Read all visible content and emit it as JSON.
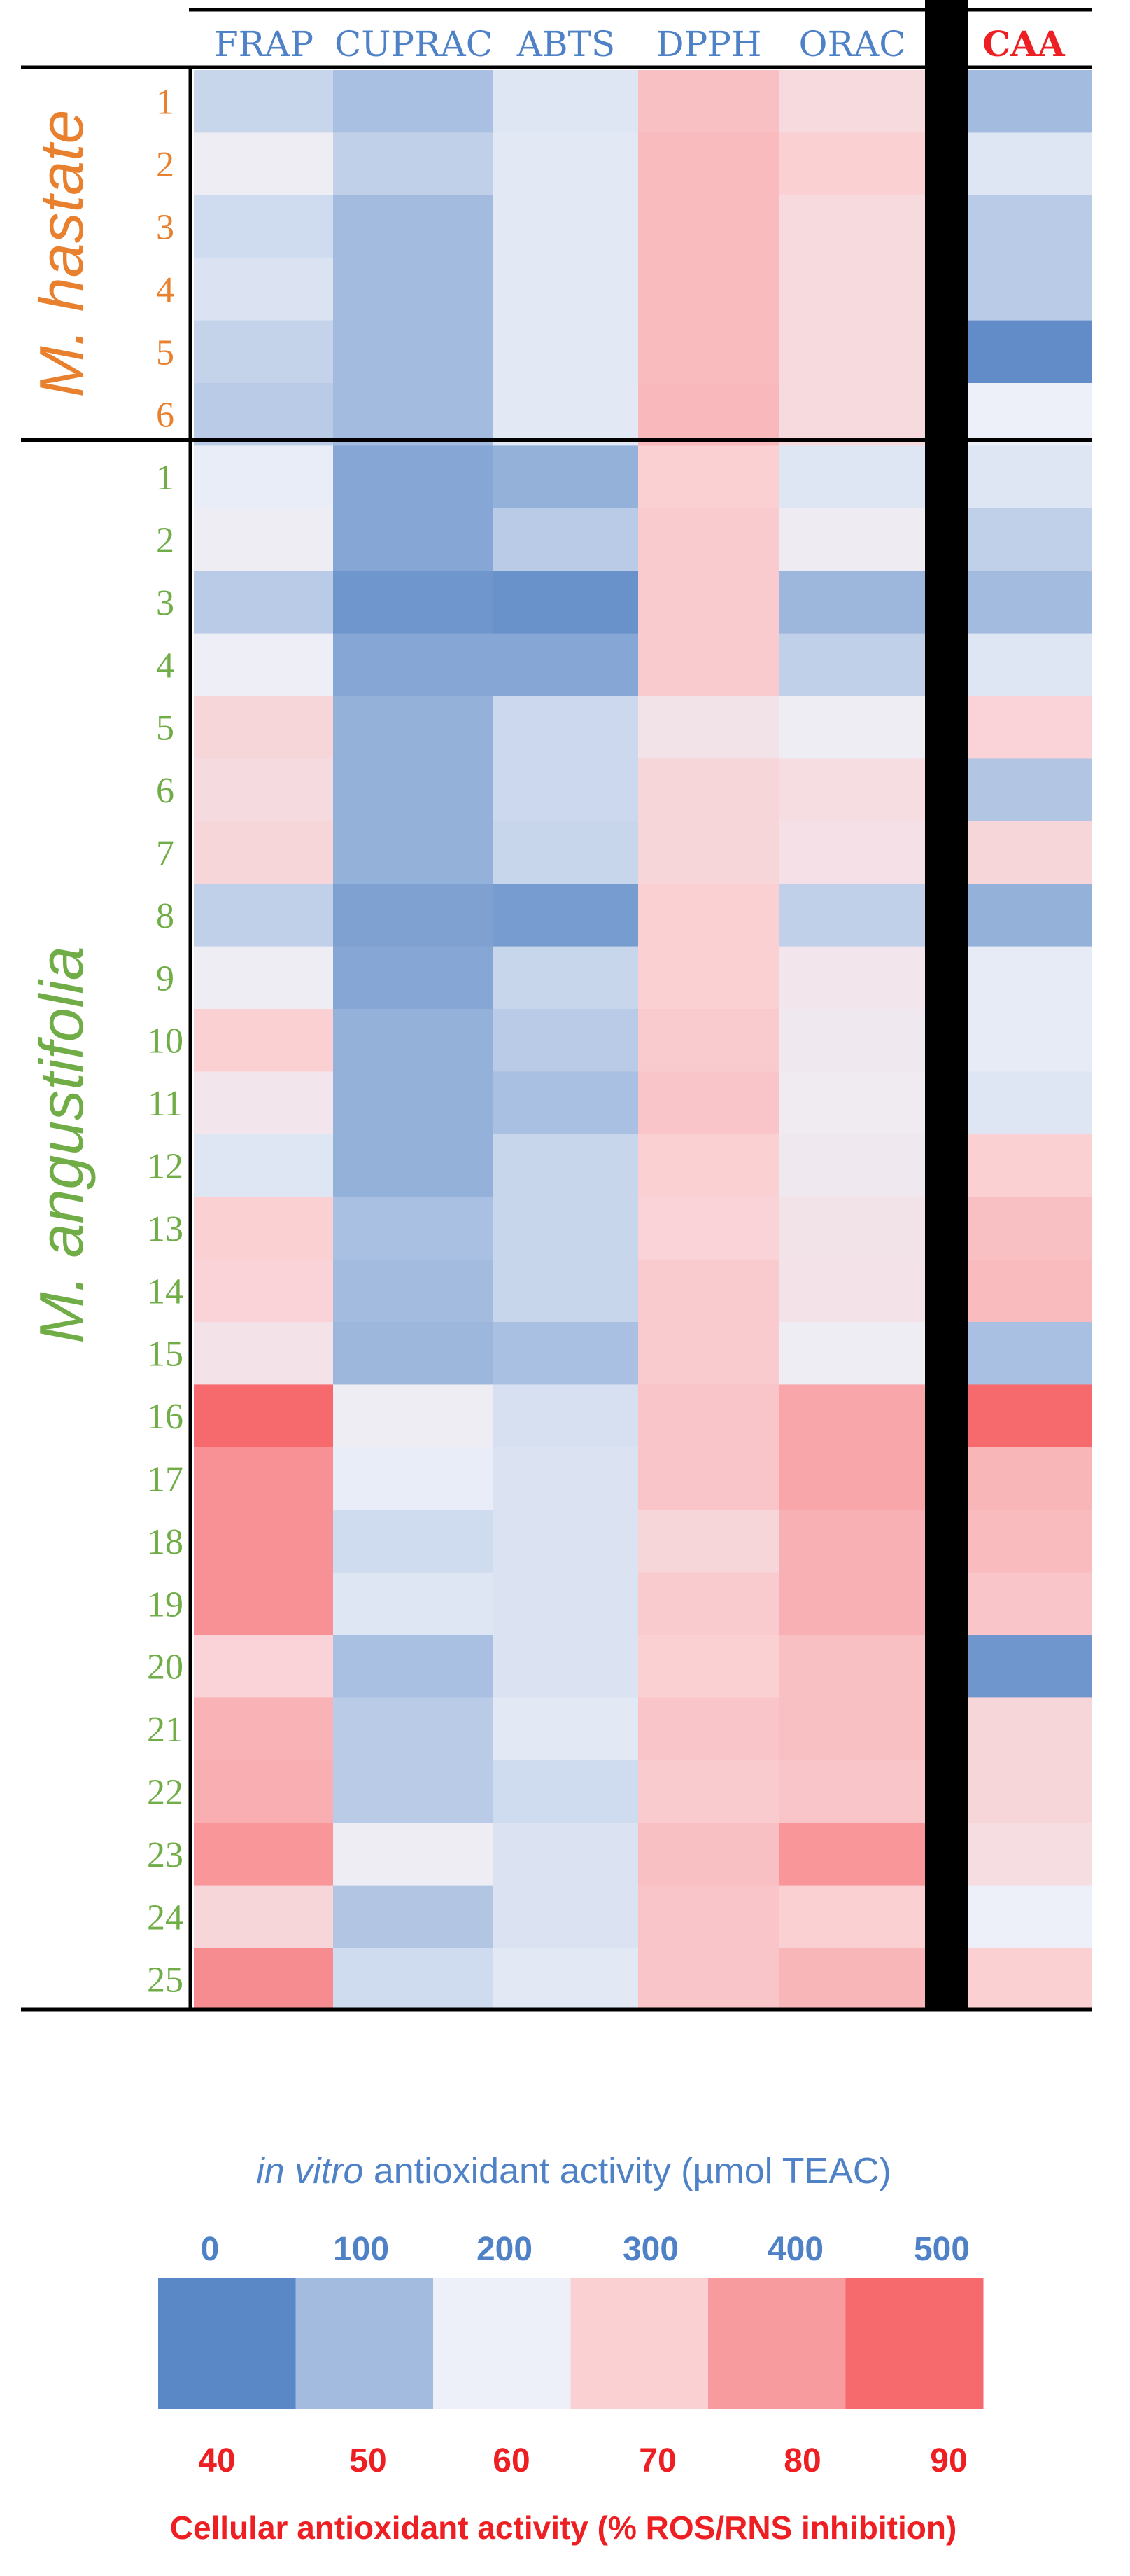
{
  "chart_data": {
    "type": "heatmap",
    "columns": [
      "FRAP",
      "CUPRAC",
      "ABTS",
      "DPPH",
      "ORAC"
    ],
    "extra_column": "CAA",
    "groups": [
      {
        "name": "M. hastate",
        "rows": [
          "1",
          "2",
          "3",
          "4",
          "5",
          "6"
        ]
      },
      {
        "name": "M. angustifolia",
        "rows": [
          "1",
          "2",
          "3",
          "4",
          "5",
          "6",
          "7",
          "8",
          "9",
          "10",
          "11",
          "12",
          "13",
          "14",
          "15",
          "16",
          "17",
          "18",
          "19",
          "20",
          "21",
          "22",
          "23",
          "24",
          "25"
        ]
      }
    ],
    "in_vitro_values": [
      [
        150,
        110,
        180,
        330,
        270
      ],
      [
        210,
        140,
        185,
        340,
        300
      ],
      [
        160,
        100,
        185,
        340,
        270
      ],
      [
        175,
        100,
        185,
        340,
        270
      ],
      [
        145,
        100,
        185,
        340,
        270
      ],
      [
        130,
        100,
        185,
        345,
        270
      ],
      [
        195,
        60,
        80,
        300,
        180
      ],
      [
        210,
        60,
        130,
        310,
        215
      ],
      [
        130,
        30,
        20,
        310,
        90
      ],
      [
        205,
        60,
        60,
        310,
        140
      ],
      [
        280,
        80,
        155,
        240,
        210
      ],
      [
        265,
        80,
        155,
        280,
        260
      ],
      [
        280,
        80,
        150,
        280,
        250
      ],
      [
        140,
        50,
        40,
        300,
        140
      ],
      [
        210,
        60,
        150,
        300,
        235
      ],
      [
        300,
        80,
        130,
        310,
        225
      ],
      [
        235,
        80,
        110,
        320,
        220
      ],
      [
        180,
        80,
        150,
        300,
        225
      ],
      [
        300,
        110,
        150,
        290,
        240
      ],
      [
        290,
        100,
        150,
        310,
        245
      ],
      [
        245,
        90,
        110,
        310,
        210
      ],
      [
        500,
        210,
        170,
        320,
        380
      ],
      [
        420,
        195,
        175,
        320,
        380
      ],
      [
        420,
        160,
        175,
        280,
        360
      ],
      [
        420,
        180,
        175,
        310,
        360
      ],
      [
        290,
        110,
        175,
        300,
        330
      ],
      [
        355,
        130,
        185,
        320,
        330
      ],
      [
        365,
        130,
        160,
        310,
        320
      ],
      [
        410,
        210,
        175,
        330,
        410
      ],
      [
        280,
        120,
        175,
        320,
        300
      ],
      [
        430,
        160,
        185,
        320,
        350
      ]
    ],
    "caa_values": [
      50,
      58,
      53,
      53,
      41,
      60,
      58,
      54,
      50,
      58,
      69,
      52,
      68,
      48,
      59,
      59,
      58,
      70,
      73,
      74,
      51,
      90,
      75,
      74,
      72,
      43,
      68,
      68,
      66,
      60,
      70
    ],
    "legend": {
      "title_italic": "in vitro",
      "title_rest": " antioxidant  activity (µmol TEAC)",
      "top_ticks": [
        "0",
        "100",
        "200",
        "300",
        "400",
        "500"
      ],
      "bottom_ticks": [
        "40",
        "50",
        "60",
        "70",
        "80",
        "90"
      ],
      "caption": "Cellular antioxidant activity (% ROS/RNS inhibition)"
    },
    "colors": {
      "low": "#5a87c5",
      "mid_low": "#a3bbdf",
      "mid": "#edf0f8",
      "mid_high": "#fad0d3",
      "high_mid": "#f89b9f",
      "high": "#f66a6e",
      "header_blue": "#4f81c7",
      "caa_red": "#ee1f23",
      "hastate_orange": "#e8802e",
      "angustifolia_green": "#70ad47"
    }
  }
}
